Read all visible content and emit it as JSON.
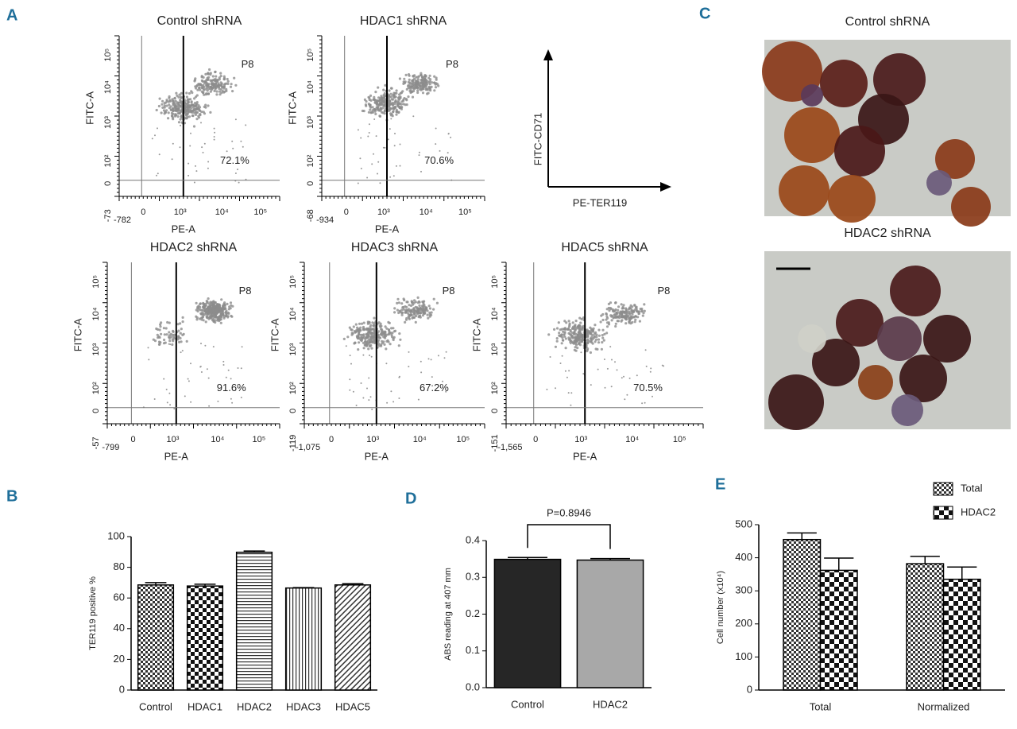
{
  "panel_labels": [
    "A",
    "B",
    "C",
    "D",
    "E"
  ],
  "flow_plots": [
    {
      "title": "Control shRNA",
      "gate": "P8",
      "percent": "72.1%",
      "x_label": "PE-A",
      "y_label": "FITC-A",
      "x_ticks": [
        "-782",
        "0",
        "10³",
        "10⁴",
        "10⁵"
      ],
      "y_ticks": [
        "-73",
        "0",
        "10²",
        "10³",
        "10⁴",
        "10⁵"
      ]
    },
    {
      "title": "HDAC1 shRNA",
      "gate": "P8",
      "percent": "70.6%",
      "x_label": "PE-A",
      "y_label": "FITC-A",
      "x_ticks": [
        "-934",
        "0",
        "10³",
        "10⁴",
        "10⁵"
      ],
      "y_ticks": [
        "-68",
        "0",
        "10²",
        "10³",
        "10⁴",
        "10⁵"
      ]
    },
    {
      "title": "HDAC2 shRNA",
      "gate": "P8",
      "percent": "91.6%",
      "x_label": "PE-A",
      "y_label": "FITC-A",
      "x_ticks": [
        "-799",
        "0",
        "10³",
        "10⁴",
        "10⁵"
      ],
      "y_ticks": [
        "-57",
        "0",
        "10²",
        "10³",
        "10⁴",
        "10⁵"
      ]
    },
    {
      "title": "HDAC3 shRNA",
      "gate": "P8",
      "percent": "67.2%",
      "x_label": "PE-A",
      "y_label": "FITC-A",
      "x_ticks": [
        "-1,075",
        "0",
        "10³",
        "10⁴",
        "10⁵"
      ],
      "y_ticks": [
        "-119",
        "0",
        "10²",
        "10³",
        "10⁴",
        "10⁵"
      ]
    },
    {
      "title": "HDAC5 shRNA",
      "gate": "P8",
      "percent": "70.5%",
      "x_label": "PE-A",
      "y_label": "FITC-A",
      "x_ticks": [
        "-1,565",
        "0",
        "10³",
        "10⁴",
        "10⁵"
      ],
      "y_ticks": [
        "-151",
        "0",
        "10²",
        "10³",
        "10⁴",
        "10⁵"
      ]
    }
  ],
  "flow_legend": {
    "y_label": "FITC-CD71",
    "x_label": "PE-TER119"
  },
  "micrographs": [
    {
      "title": "Control shRNA"
    },
    {
      "title": "HDAC2 shRNA"
    }
  ],
  "chart_data": [
    {
      "type": "bar",
      "y_label": "TER119 positive %",
      "categories": [
        "Control",
        "HDAC1",
        "HDAC2",
        "HDAC3",
        "HDAC5"
      ],
      "values": [
        68.5,
        67.8,
        89.8,
        66.5,
        68.5
      ],
      "errors": [
        1.5,
        1.2,
        0.8,
        0.3,
        0.8
      ],
      "patterns": [
        "checker-small",
        "checker",
        "hlines",
        "vlines",
        "diag"
      ],
      "ylim": [
        0,
        100
      ],
      "yticks": [
        0,
        20,
        40,
        60,
        80,
        100
      ]
    },
    {
      "type": "bar",
      "y_label": "ABS reading at 407 mm",
      "categories": [
        "Control",
        "HDAC2"
      ],
      "values": [
        0.349,
        0.347
      ],
      "errors": [
        0.005,
        0.004
      ],
      "colors": [
        "#262626",
        "#a8a8a8"
      ],
      "annotation": "P=0.8946",
      "ylim": [
        0,
        0.4
      ],
      "yticks": [
        {
          "value": 0,
          "label": "0.0"
        },
        0.1,
        0.2,
        0.3,
        0.4
      ]
    },
    {
      "type": "bar",
      "y_label": "Cell number (x10⁴)",
      "categories": [
        "Total",
        "Normalized"
      ],
      "series": [
        {
          "name": "Total",
          "pattern": "checker-small",
          "values": [
            455,
            382
          ],
          "errors": [
            20,
            22
          ]
        },
        {
          "name": "HDAC2",
          "pattern": "checker-large",
          "values": [
            362,
            335
          ],
          "errors": [
            37,
            37
          ]
        }
      ],
      "legend": "upper right",
      "ylim": [
        0,
        500
      ],
      "yticks": [
        0,
        100,
        200,
        300,
        400,
        500
      ]
    }
  ]
}
